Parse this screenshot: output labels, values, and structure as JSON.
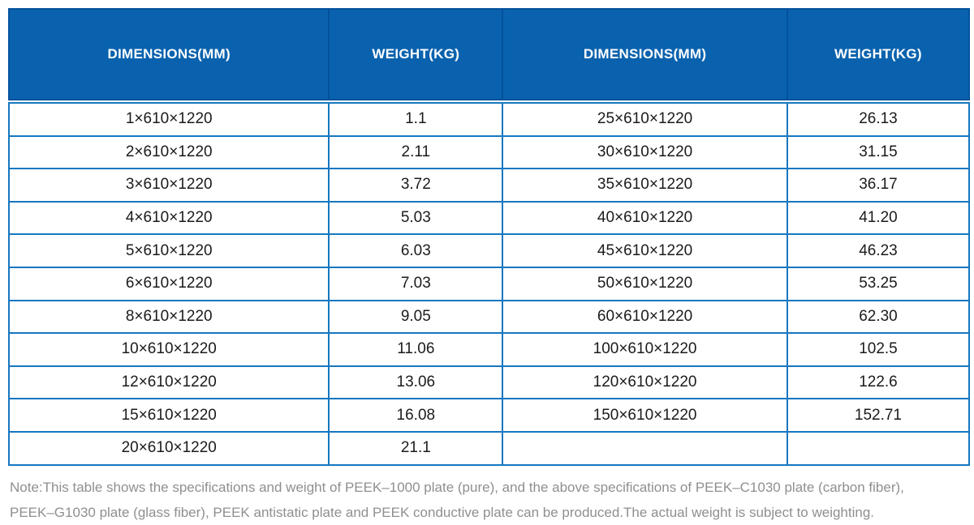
{
  "chart_data": {
    "type": "table",
    "columns": [
      "DIMENSIONS(MM)",
      "WEIGHT(KG)",
      "DIMENSIONS(MM)",
      "WEIGHT(KG)"
    ],
    "rows": [
      [
        "1×610×1220",
        "1.1",
        "25×610×1220",
        "26.13"
      ],
      [
        "2×610×1220",
        "2.11",
        "30×610×1220",
        "31.15"
      ],
      [
        "3×610×1220",
        "3.72",
        "35×610×1220",
        "36.17"
      ],
      [
        "4×610×1220",
        "5.03",
        "40×610×1220",
        "41.20"
      ],
      [
        "5×610×1220",
        "6.03",
        "45×610×1220",
        "46.23"
      ],
      [
        "6×610×1220",
        "7.03",
        "50×610×1220",
        "53.25"
      ],
      [
        "8×610×1220",
        "9.05",
        "60×610×1220",
        "62.30"
      ],
      [
        "10×610×1220",
        "11.06",
        "100×610×1220",
        "102.5"
      ],
      [
        "12×610×1220",
        "13.06",
        "120×610×1220",
        "122.6"
      ],
      [
        "15×610×1220",
        "16.08",
        "150×610×1220",
        "152.71"
      ],
      [
        "20×610×1220",
        "21.1",
        "",
        ""
      ]
    ]
  },
  "note": {
    "line1": "Note:This table shows the specifications and weight of PEEK–1000 plate (pure), and the above specifications of PEEK–C1030 plate (carbon fiber),",
    "line2": "PEEK–G1030 plate (glass fiber), PEEK antistatic plate and PEEK conductive plate can be produced.The actual weight is subject to weighting."
  },
  "colors": {
    "header_bg": "#0a62ae",
    "header_divider": "#04519c",
    "grid_line": "#1677c0",
    "body_text": "#1b1b1b",
    "note_text": "#8f8f8f"
  }
}
